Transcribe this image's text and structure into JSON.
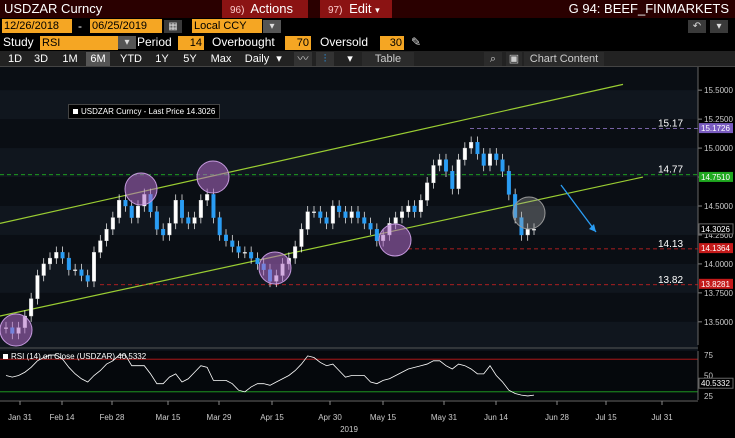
{
  "header": {
    "title": "USDZAR Curncy",
    "actions_num": "96)",
    "actions_label": "Actions",
    "edit_num": "97)",
    "edit_label": "Edit",
    "page_code": "G 94: BEEF_FINMARKETS"
  },
  "range": {
    "start_date": "12/26/2018",
    "end_date": "06/25/2019",
    "currency": "Local CCY"
  },
  "study_bar": {
    "study_label": "Study",
    "study_value": "RSI",
    "period_label": "Period",
    "period_value": "14",
    "overbought_label": "Overbought",
    "overbought_value": "70",
    "oversold_label": "Oversold",
    "oversold_value": "30"
  },
  "periods": [
    "1D",
    "3D",
    "1M",
    "6M",
    "YTD",
    "1Y",
    "5Y",
    "Max"
  ],
  "active_period": "6M",
  "toolbar": {
    "frequency": "Daily",
    "table_label": "Table",
    "chart_content_label": "Chart Content"
  },
  "chart_data": {
    "type": "line",
    "title": "",
    "legend": "USDZAR Curncy - Last Price 14.3026",
    "last_price": 14.3026,
    "y_ticks": [
      "15.5000",
      "15.2500",
      "15.0000",
      "14.7500",
      "14.5000",
      "14.2500",
      "14.0000",
      "13.7500",
      "13.5000"
    ],
    "y_range": [
      13.3,
      15.7
    ],
    "x_ticks": [
      "Jan 31",
      "Feb 14",
      "Feb 28",
      "Mar 15",
      "Mar 29",
      "Apr 15",
      "Apr 30",
      "May 15",
      "May 31",
      "Jun 14",
      "Jun 28",
      "Jul 15",
      "Jul 31"
    ],
    "x_year_label": "2019",
    "level_labels": [
      {
        "text": "15.17",
        "value": 15.17,
        "color": "#9b7fd4"
      },
      {
        "text": "14.77",
        "value": 14.77,
        "color": "#22cc22"
      },
      {
        "text": "14.13",
        "value": 14.13,
        "color": "#dd2222"
      },
      {
        "text": "13.82",
        "value": 13.82,
        "color": "#dd2222"
      }
    ],
    "price_tags": [
      {
        "text": "15.1726",
        "value": 15.1726,
        "color": "#7a5cc0"
      },
      {
        "text": "14.7510",
        "value": 14.751,
        "color": "#1fa81f"
      },
      {
        "text": "14.3026",
        "value": 14.3026,
        "color": "#000000"
      },
      {
        "text": "14.1364",
        "value": 14.1364,
        "color": "#c41a1a"
      },
      {
        "text": "13.8281",
        "value": 13.8281,
        "color": "#c41a1a"
      }
    ],
    "series": [
      {
        "values": [
          13.45,
          13.4,
          13.45,
          13.55,
          13.7,
          13.9,
          14.0,
          14.05,
          14.1,
          14.05,
          13.95,
          13.95,
          13.9,
          13.85,
          14.1,
          14.2,
          14.3,
          14.4,
          14.55,
          14.5,
          14.4,
          14.5,
          14.6,
          14.45,
          14.3,
          14.25,
          14.35,
          14.55,
          14.4,
          14.35,
          14.4,
          14.55,
          14.6,
          14.4,
          14.25,
          14.2,
          14.15,
          14.1,
          14.1,
          14.05,
          14.0,
          13.95,
          13.85,
          13.9,
          14.0,
          14.05,
          14.15,
          14.3,
          14.45,
          14.45,
          14.4,
          14.35,
          14.5,
          14.45,
          14.4,
          14.45,
          14.4,
          14.35,
          14.3,
          14.2,
          14.25,
          14.35,
          14.4,
          14.45,
          14.5,
          14.45,
          14.55,
          14.7,
          14.85,
          14.9,
          14.8,
          14.65,
          14.9,
          15.0,
          15.05,
          14.95,
          14.85,
          14.95,
          14.9,
          14.8,
          14.6,
          14.4,
          14.25,
          14.3,
          14.3
        ]
      }
    ],
    "rsi": {
      "legend": "RSI (14) on Close (USDZAR) 40.5332",
      "value": 40.5332,
      "y_ticks": [
        "75",
        "50",
        "25"
      ],
      "overbought": 70,
      "oversold": 30
    }
  },
  "colors": {
    "accent": "#f5a623",
    "trendline": "#9acd32",
    "circle_fill": "#b06cc8",
    "arrow": "#2a9df4"
  }
}
